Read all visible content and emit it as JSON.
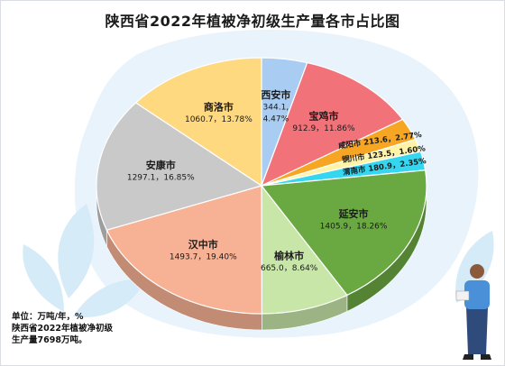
{
  "chart_data": {
    "type": "pie",
    "title": "陕西省2022年植被净初级生产量各市占比图",
    "slices": [
      {
        "name": "西安市",
        "value": 344.1,
        "percent": 4.47,
        "label": "344.1,\n4.47%",
        "color": "#a9cdf2"
      },
      {
        "name": "宝鸡市",
        "value": 912.9,
        "percent": 11.86,
        "label": "912.9，11.86%",
        "color": "#f2727a"
      },
      {
        "name": "咸阳市",
        "value": 213.6,
        "percent": 2.77,
        "label": "213.6，2.77%",
        "color": "#f6a623"
      },
      {
        "name": "铜川市",
        "value": 123.5,
        "percent": 1.6,
        "label": "123.5，1.60%",
        "color": "#fff3a8"
      },
      {
        "name": "渭南市",
        "value": 180.9,
        "percent": 2.35,
        "label": "180.9，2.35%",
        "color": "#35d6f0"
      },
      {
        "name": "延安市",
        "value": 1405.9,
        "percent": 18.26,
        "label": "1405.9，18.26%",
        "color": "#6aa842"
      },
      {
        "name": "榆林市",
        "value": 665.0,
        "percent": 8.64,
        "label": "665.0，8.64%",
        "color": "#c8e6a8"
      },
      {
        "name": "汉中市",
        "value": 1493.7,
        "percent": 19.4,
        "label": "1493.7，19.40%",
        "color": "#f7b295"
      },
      {
        "name": "安康市",
        "value": 1297.1,
        "percent": 16.85,
        "label": "1297.1，16.85%",
        "color": "#c9c9c9"
      },
      {
        "name": "商洛市",
        "value": 1060.7,
        "percent": 13.78,
        "label": "1060.7，13.78%",
        "color": "#ffd980"
      }
    ]
  },
  "note": {
    "line1": "单位：万吨/年，%",
    "line2": "陕西省2022年植被净初级",
    "line3": "生产量7698万吨。"
  }
}
